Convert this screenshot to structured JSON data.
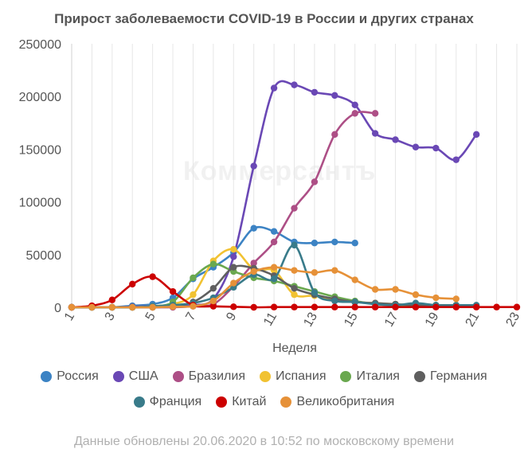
{
  "chart_data": {
    "type": "line",
    "title": "Прирост заболеваемости COVID-19 в России и других странах",
    "xlabel": "Неделя",
    "ylabel": "",
    "xlim": [
      1,
      23
    ],
    "ylim": [
      0,
      250000
    ],
    "x_ticks": [
      1,
      3,
      5,
      7,
      9,
      11,
      13,
      15,
      17,
      19,
      21,
      23
    ],
    "y_ticks": [
      0,
      50000,
      100000,
      150000,
      200000,
      250000
    ],
    "grid": "vertical",
    "legend_position": "bottom",
    "watermark": "Коммерсантъ",
    "footnote": "Данные обновлены 20.06.2020 в 10:52 по московскому времени",
    "series": [
      {
        "name": "Россия",
        "color": "#3c83c4",
        "x": [
          1,
          2,
          3,
          4,
          5,
          6,
          7,
          8,
          9,
          10,
          11,
          12,
          13,
          14,
          15
        ],
        "y": [
          0,
          0,
          0,
          1500,
          3000,
          9000,
          27000,
          38000,
          52000,
          75000,
          72000,
          62000,
          61000,
          62000,
          61000
        ]
      },
      {
        "name": "США",
        "color": "#6a48b5",
        "x": [
          1,
          2,
          3,
          4,
          5,
          6,
          7,
          8,
          9,
          10,
          11,
          12,
          13,
          14,
          15,
          16,
          17,
          18,
          19,
          20,
          21
        ],
        "y": [
          0,
          0,
          0,
          500,
          1000,
          1000,
          2000,
          8000,
          48000,
          134000,
          208000,
          211000,
          204000,
          201000,
          192000,
          165000,
          159000,
          152000,
          151000,
          140000,
          164000
        ]
      },
      {
        "name": "Бразилия",
        "color": "#ad4f86",
        "x": [
          1,
          2,
          3,
          4,
          5,
          6,
          7,
          8,
          9,
          10,
          11,
          12,
          13,
          14,
          15,
          16
        ],
        "y": [
          0,
          0,
          0,
          0,
          0,
          0,
          1000,
          3000,
          20000,
          42000,
          62000,
          94000,
          119000,
          164000,
          184000,
          184000
        ]
      },
      {
        "name": "Испания",
        "color": "#f1c232",
        "x": [
          1,
          2,
          3,
          4,
          5,
          6,
          7,
          8,
          9,
          10,
          11,
          12,
          13,
          14,
          15,
          16,
          17,
          18,
          19,
          20
        ],
        "y": [
          0,
          0,
          0,
          0,
          1000,
          3000,
          12000,
          44000,
          55000,
          36000,
          35000,
          12000,
          11000,
          7000,
          5000,
          4000,
          3000,
          2000,
          2000,
          2000
        ]
      },
      {
        "name": "Италия",
        "color": "#6aa84f",
        "x": [
          1,
          2,
          3,
          4,
          5,
          6,
          7,
          8,
          9,
          10,
          11,
          12,
          13,
          14,
          15,
          16,
          17,
          18,
          19,
          20
        ],
        "y": [
          0,
          0,
          0,
          0,
          1000,
          5000,
          28000,
          41000,
          34000,
          28000,
          25000,
          20000,
          15000,
          10000,
          6000,
          3000,
          2000,
          2000,
          1000,
          1000
        ]
      },
      {
        "name": "Германия",
        "color": "#5f5f5f",
        "x": [
          1,
          2,
          3,
          4,
          5,
          6,
          7,
          8,
          9,
          10,
          11,
          12,
          13,
          14,
          15,
          16,
          17,
          18,
          19,
          20
        ],
        "y": [
          0,
          0,
          0,
          0,
          0,
          1000,
          5000,
          18000,
          38000,
          37000,
          30000,
          18000,
          12000,
          8000,
          5000,
          4000,
          3000,
          2000,
          2000,
          2000
        ]
      },
      {
        "name": "Франция",
        "color": "#397b8a",
        "x": [
          1,
          2,
          3,
          4,
          5,
          6,
          7,
          8,
          9,
          10,
          11,
          12,
          13,
          14,
          15,
          16,
          17,
          18,
          19,
          20,
          21
        ],
        "y": [
          0,
          0,
          0,
          0,
          1000,
          2000,
          4000,
          9000,
          19000,
          31000,
          27000,
          59000,
          14000,
          6000,
          5000,
          3000,
          2000,
          4000,
          2000,
          2000,
          2000
        ]
      },
      {
        "name": "Китай",
        "color": "#cc0000",
        "x": [
          1,
          2,
          3,
          4,
          5,
          6,
          7,
          8,
          9,
          10,
          11,
          12,
          13,
          14,
          15,
          16,
          17,
          18,
          19,
          20,
          21,
          22,
          23
        ],
        "y": [
          0,
          1500,
          7000,
          22000,
          29000,
          15000,
          2000,
          1000,
          500,
          0,
          200,
          200,
          200,
          200,
          200,
          200,
          200,
          200,
          200,
          200,
          200,
          200,
          200
        ]
      },
      {
        "name": "Великобритания",
        "color": "#e69138",
        "x": [
          1,
          2,
          3,
          4,
          5,
          6,
          7,
          8,
          9,
          10,
          11,
          12,
          13,
          14,
          15,
          16,
          17,
          18,
          19,
          20
        ],
        "y": [
          0,
          0,
          0,
          0,
          0,
          500,
          1000,
          6000,
          23000,
          34000,
          38000,
          35000,
          33000,
          35000,
          26000,
          17000,
          17000,
          12000,
          9000,
          8000
        ]
      }
    ]
  }
}
